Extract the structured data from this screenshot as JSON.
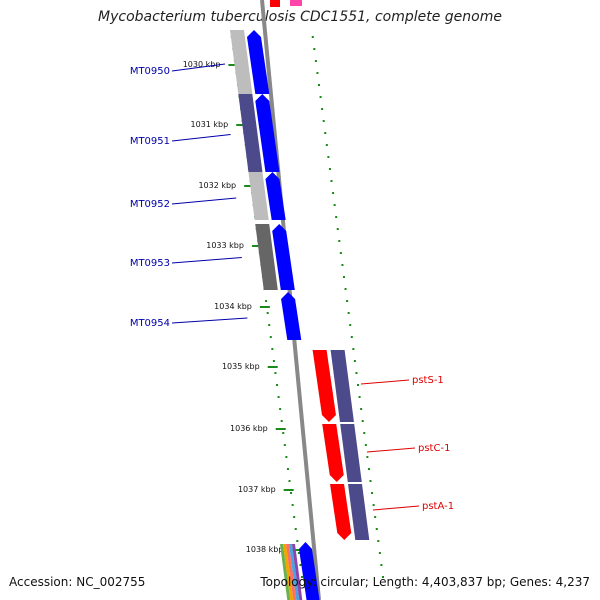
{
  "title": "Mycobacterium tuberculosis CDC1551, complete genome",
  "footer": {
    "accession": "Accession: NC_002755",
    "summary": "Topology: circular; Length: 4,403,837 bp; Genes: 4,237"
  },
  "ruler": {
    "labels": [
      "1030 kbp",
      "1031 kbp",
      "1032 kbp",
      "1033 kbp",
      "1034 kbp",
      "1035 kbp",
      "1036 kbp",
      "1037 kbp",
      "1038 kbp"
    ]
  },
  "colors": {
    "forward_gene": "#0000ff",
    "reverse_gene": "#ff0000",
    "forward_label": "#0000aa",
    "reverse_label": "#dd0000",
    "backbone": "#888888",
    "tick": "#1a8a1a",
    "cog_dark": "#4c4a8a",
    "cog_gray": "#bdbdbd",
    "cog_darkgray": "#666666"
  },
  "genes": [
    {
      "name": "MT0950",
      "strand": "forward"
    },
    {
      "name": "MT0951",
      "strand": "forward"
    },
    {
      "name": "MT0952",
      "strand": "forward"
    },
    {
      "name": "MT0953",
      "strand": "forward"
    },
    {
      "name": "MT0954",
      "strand": "forward"
    },
    {
      "name": "pstS-1",
      "strand": "reverse"
    },
    {
      "name": "pstC-1",
      "strand": "reverse"
    },
    {
      "name": "pstA-1",
      "strand": "reverse"
    }
  ]
}
